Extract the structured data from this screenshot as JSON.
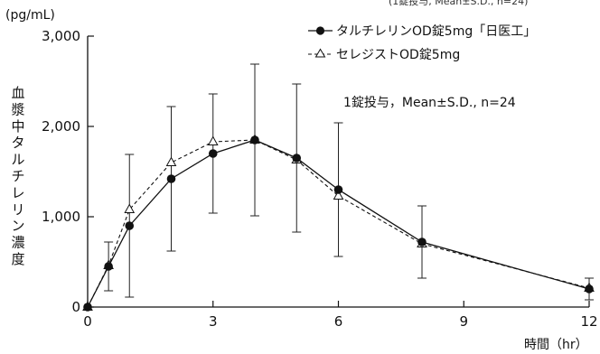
{
  "chart_data": {
    "type": "line",
    "top_note_fragment": "(1錠投与, Mean±S.D., n=24)",
    "y_unit": "(pg/mL)",
    "ylabel": "血漿中タルチレリン濃度",
    "xlabel": "時間（hr）",
    "xlim": [
      0,
      12
    ],
    "ylim": [
      0,
      3000
    ],
    "x_ticks": [
      0,
      3,
      6,
      9,
      12
    ],
    "y_ticks": [
      0,
      1000,
      2000,
      3000
    ],
    "x_tick_labels": [
      "0",
      "3",
      "6",
      "9",
      "12"
    ],
    "y_tick_labels": [
      "0",
      "1,000",
      "2,000",
      "3,000"
    ],
    "annotation": "1錠投与，Mean±S.D., n=24",
    "grid": false,
    "legend_position": "top-right",
    "series": [
      {
        "name": "タルチレリンOD錠5mg「日医工」",
        "marker": "filled-circle",
        "line_style": "solid",
        "x": [
          0,
          0.5,
          1,
          2,
          3,
          4,
          5,
          6,
          8,
          12
        ],
        "values": [
          0,
          450,
          900,
          1420,
          1700,
          1850,
          1650,
          1300,
          720,
          200
        ],
        "error": [
          0,
          270,
          790,
          800,
          660,
          840,
          820,
          740,
          400,
          120
        ]
      },
      {
        "name": "セレジストOD錠5mg",
        "marker": "open-triangle",
        "line_style": "dashed",
        "x": [
          0,
          0.5,
          1,
          2,
          3,
          4,
          5,
          6,
          8,
          12
        ],
        "values": [
          0,
          460,
          1080,
          1600,
          1830,
          1850,
          1630,
          1230,
          700,
          210
        ],
        "error": [
          0,
          0,
          0,
          0,
          0,
          0,
          0,
          0,
          0,
          0
        ]
      }
    ]
  }
}
